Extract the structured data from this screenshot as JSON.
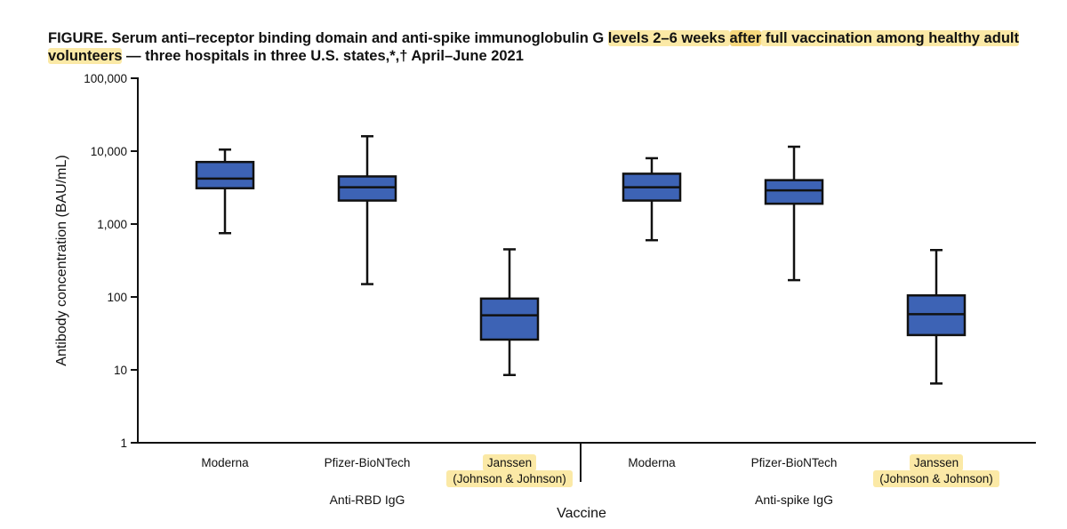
{
  "title": {
    "part1": "FIGURE. Serum anti–receptor binding domain and anti-spike immunoglobulin G ",
    "hl1": "levels 2–6 weeks ",
    "hl2": "after",
    "hl3": " full vaccination among healthy adult",
    "line2_hl": "volunteers",
    "line2_rest": " — three hospitals in three U.S. states,*,† April–June 2021"
  },
  "colors": {
    "box_fill": "#3d63b5",
    "stroke": "#111111",
    "highlight": "#fbe9a6"
  },
  "chart_data": {
    "type": "box",
    "title": "FIGURE. Serum anti–receptor binding domain and anti-spike immunoglobulin G levels 2–6 weeks after full vaccination among healthy adult volunteers — three hospitals in three U.S. states,*,† April–June 2021",
    "xlabel": "Vaccine",
    "ylabel": "Antibody concentration (BAU/mL)",
    "yscale": "log",
    "ylim": [
      1,
      100000
    ],
    "yticks": [
      1,
      10,
      100,
      1000,
      10000,
      100000
    ],
    "ytick_labels": [
      "1",
      "10",
      "100",
      "1,000",
      "10,000",
      "100,000"
    ],
    "groups": [
      "Anti-RBD IgG",
      "Anti-spike IgG"
    ],
    "boxes": [
      {
        "category": "Moderna",
        "category_lines": [
          "Moderna"
        ],
        "group": "Anti-RBD IgG",
        "highlight": false,
        "min": 750,
        "q1": 3100,
        "median": 4200,
        "q3": 7100,
        "max": 10500
      },
      {
        "category": "Pfizer-BioNTech",
        "category_lines": [
          "Pfizer-BioNTech"
        ],
        "group": "Anti-RBD IgG",
        "highlight": false,
        "min": 150,
        "q1": 2100,
        "median": 3200,
        "q3": 4500,
        "max": 16000
      },
      {
        "category": "Janssen (Johnson & Johnson)",
        "category_lines": [
          "Janssen",
          "(Johnson & Johnson)"
        ],
        "group": "Anti-RBD IgG",
        "highlight": true,
        "min": 8.5,
        "q1": 26,
        "median": 56,
        "q3": 95,
        "max": 450
      },
      {
        "category": "Moderna",
        "category_lines": [
          "Moderna"
        ],
        "group": "Anti-spike IgG",
        "highlight": false,
        "min": 600,
        "q1": 2100,
        "median": 3200,
        "q3": 4900,
        "max": 8000
      },
      {
        "category": "Pfizer-BioNTech",
        "category_lines": [
          "Pfizer-BioNTech"
        ],
        "group": "Anti-spike IgG",
        "highlight": false,
        "min": 170,
        "q1": 1900,
        "median": 2900,
        "q3": 4000,
        "max": 11500
      },
      {
        "category": "Janssen (Johnson & Johnson)",
        "category_lines": [
          "Janssen",
          "(Johnson & Johnson)"
        ],
        "group": "Anti-spike IgG",
        "highlight": true,
        "min": 6.5,
        "q1": 30,
        "median": 58,
        "q3": 105,
        "max": 440
      }
    ]
  }
}
